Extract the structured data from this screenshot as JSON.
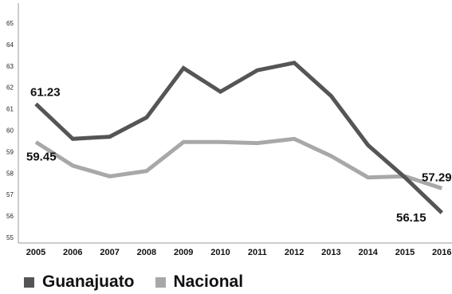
{
  "chart_data": {
    "type": "line",
    "categories": [
      "2005",
      "2006",
      "2007",
      "2008",
      "2009",
      "2010",
      "2011",
      "2012",
      "2013",
      "2014",
      "2015",
      "2016"
    ],
    "series": [
      {
        "name": "Guanajuato",
        "color": "#555555",
        "values": [
          61.23,
          59.6,
          59.7,
          60.6,
          62.9,
          61.8,
          62.8,
          63.15,
          61.6,
          59.3,
          57.8,
          56.15
        ]
      },
      {
        "name": "Nacional",
        "color": "#a8a8a8",
        "values": [
          59.45,
          58.35,
          57.85,
          58.1,
          59.45,
          59.45,
          59.4,
          59.6,
          58.8,
          57.8,
          57.85,
          57.29
        ]
      }
    ],
    "data_labels": [
      "61.23",
      "59.45",
      "57.29",
      "56.15"
    ],
    "ylim": [
      55,
      65
    ],
    "yticks": [
      "55",
      "56",
      "57",
      "58",
      "59",
      "60",
      "61",
      "62",
      "63",
      "64",
      "65"
    ],
    "grid": false,
    "legend_position": "bottom-left",
    "title": "",
    "xlabel": "",
    "ylabel": ""
  }
}
